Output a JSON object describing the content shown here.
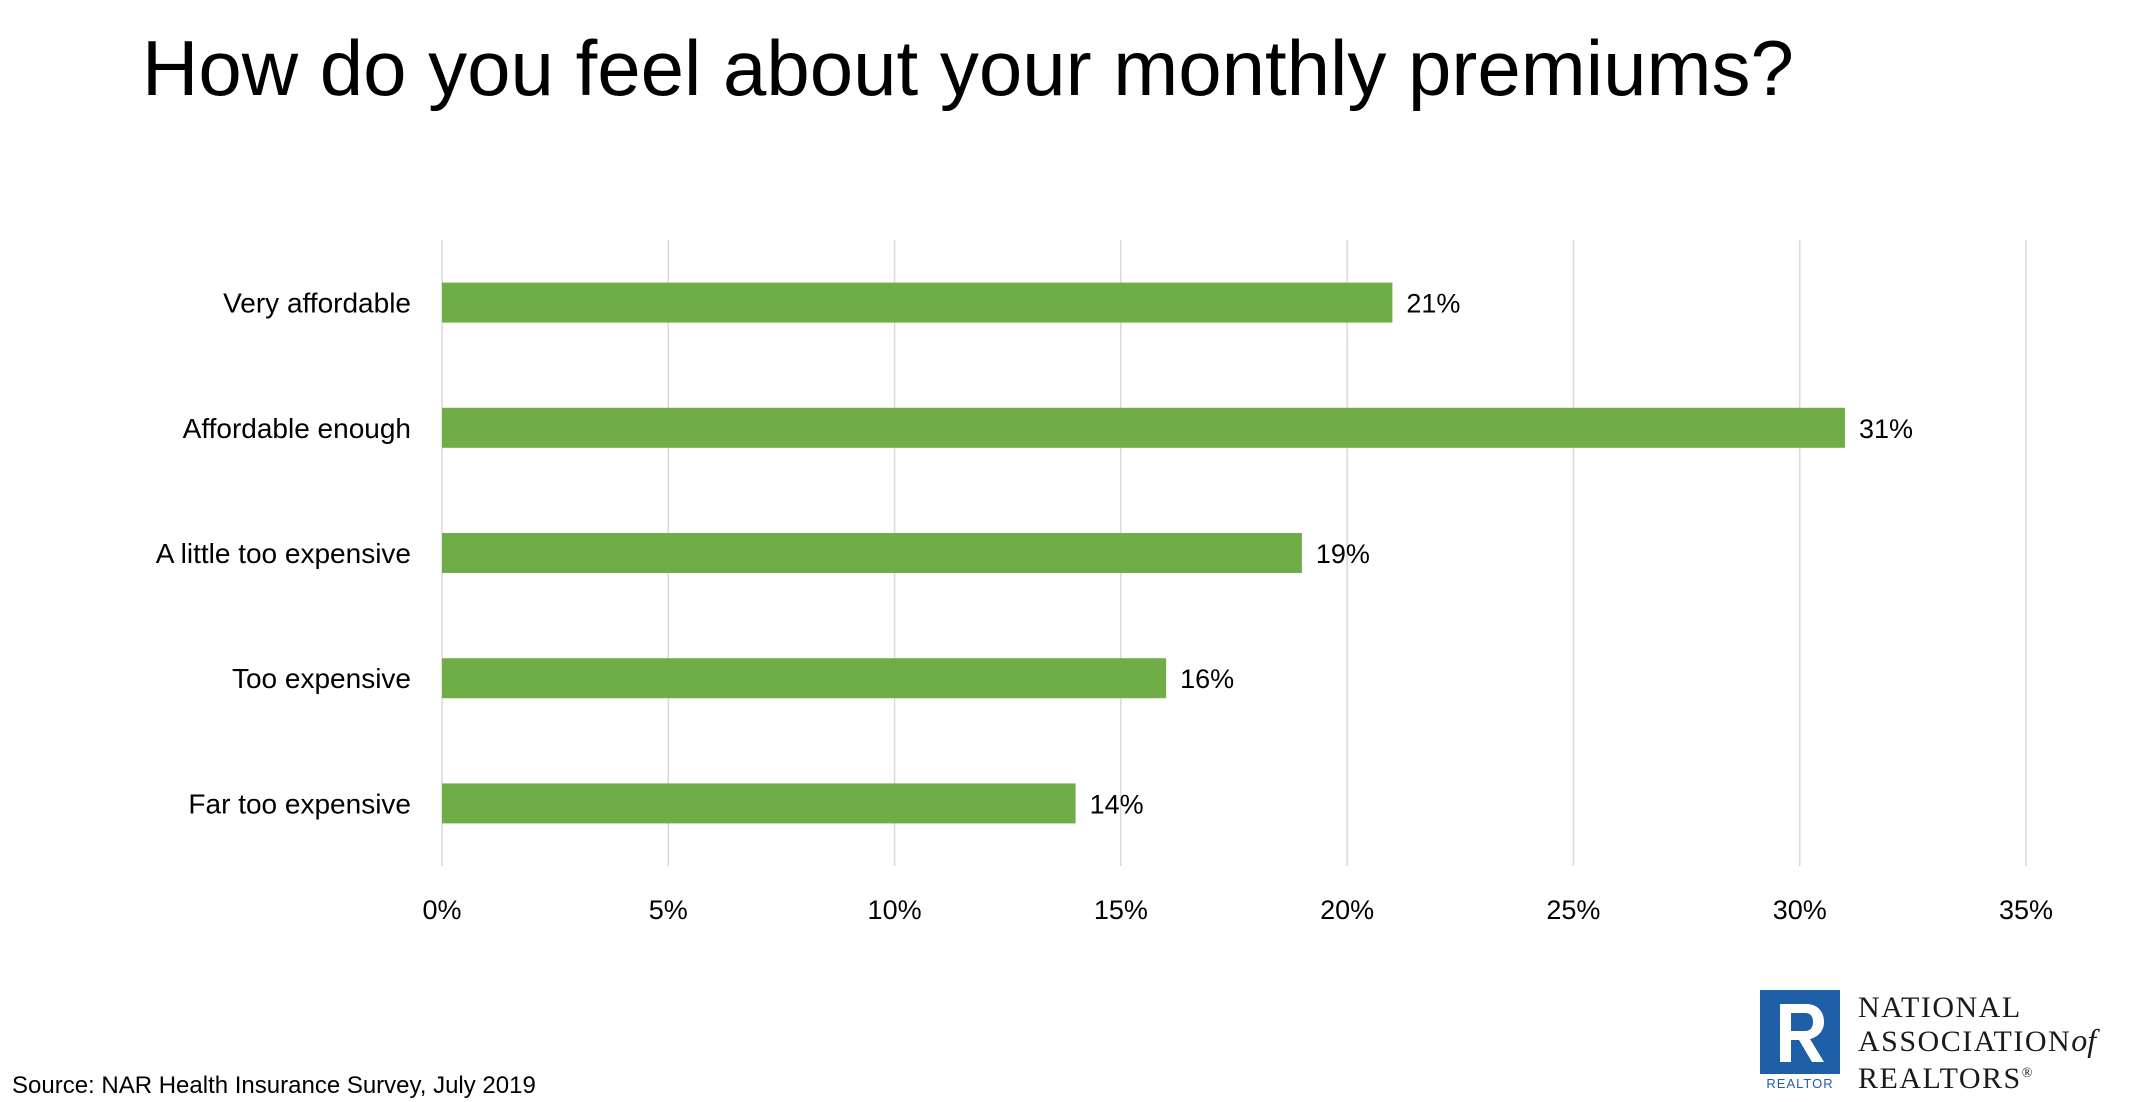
{
  "title": "How do you feel about your monthly premiums?",
  "source": "Source: NAR Health Insurance Survey, July 2019",
  "logo": {
    "line1": "NATIONAL",
    "line2": "ASSOCIATION",
    "line2_of": "of",
    "line3": "REALTORS",
    "line3_mark": "®",
    "badge": "REALTOR"
  },
  "colors": {
    "bar": "#70ad47",
    "grid": "#d9d9d9",
    "logo_blue": "#1f5fa8"
  },
  "chart_data": {
    "type": "bar",
    "orientation": "horizontal",
    "categories": [
      "Very affordable",
      "Affordable enough",
      "A little too expensive",
      "Too expensive",
      "Far too expensive"
    ],
    "values": [
      21,
      31,
      19,
      16,
      14
    ],
    "data_labels": [
      "21%",
      "31%",
      "19%",
      "16%",
      "14%"
    ],
    "xlim": [
      0,
      35
    ],
    "x_ticks": [
      "0%",
      "5%",
      "10%",
      "15%",
      "20%",
      "25%",
      "30%",
      "35%"
    ],
    "grid": true
  }
}
